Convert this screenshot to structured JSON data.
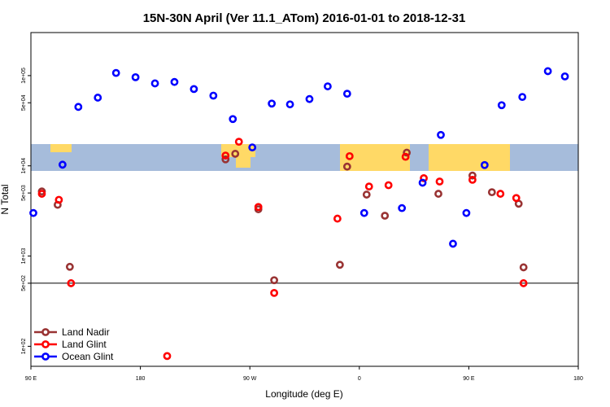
{
  "chart_data": {
    "type": "scatter",
    "title": "15N-30N April (Ver 11.1_ATom)   2016-01-01 to 2018-12-31",
    "xlabel": "Longitude (deg E)",
    "ylabel": "N Total",
    "x_ticks": [
      {
        "value": 90,
        "label": "90 E"
      },
      {
        "value": 180,
        "label": "180"
      },
      {
        "value": 270,
        "label": "90 W"
      },
      {
        "value": 360,
        "label": "0"
      },
      {
        "value": 450,
        "label": "90 E"
      },
      {
        "value": 540,
        "label": "180"
      }
    ],
    "x_range": [
      90,
      540
    ],
    "y_scale": "log",
    "y_range": [
      60,
      300000
    ],
    "y_ticks": [
      {
        "value": 100,
        "label": "1e+02"
      },
      {
        "value": 500,
        "label": "5e+02"
      },
      {
        "value": 1000,
        "label": "1e+03"
      },
      {
        "value": 5000,
        "label": "5e+03"
      },
      {
        "value": 10000,
        "label": "1e+04"
      },
      {
        "value": 50000,
        "label": "5e+04"
      },
      {
        "value": 100000,
        "label": "1e+05"
      }
    ],
    "hline": 500,
    "legend_position": "bottom-left",
    "series": [
      {
        "name": "Land Nadir",
        "color": "#993333",
        "points": [
          [
            99,
            5200
          ],
          [
            112,
            3700
          ],
          [
            122,
            760
          ],
          [
            250,
            11800
          ],
          [
            258,
            13600
          ],
          [
            277,
            3300
          ],
          [
            290,
            540
          ],
          [
            344,
            800
          ],
          [
            350,
            9800
          ],
          [
            366,
            4800
          ],
          [
            381,
            2800
          ],
          [
            399,
            14000
          ],
          [
            425,
            4900
          ],
          [
            453,
            7800
          ],
          [
            469,
            5100
          ],
          [
            491,
            3800
          ],
          [
            495,
            750
          ]
        ]
      },
      {
        "name": "Land Glint",
        "color": "#ff0000",
        "points": [
          [
            99,
            4900
          ],
          [
            113,
            4200
          ],
          [
            123,
            500
          ],
          [
            202,
            78
          ],
          [
            250,
            13000
          ],
          [
            261,
            18500
          ],
          [
            277,
            3500
          ],
          [
            290,
            390
          ],
          [
            342,
            2600
          ],
          [
            352,
            12800
          ],
          [
            368,
            5900
          ],
          [
            384,
            6100
          ],
          [
            398,
            12600
          ],
          [
            413,
            7300
          ],
          [
            426,
            6700
          ],
          [
            453,
            7000
          ],
          [
            476,
            4900
          ],
          [
            489,
            4400
          ],
          [
            495,
            500
          ]
        ]
      },
      {
        "name": "Ocean Glint",
        "color": "#0000ff",
        "points": [
          [
            92,
            3000
          ],
          [
            116,
            10300
          ],
          [
            129,
            45000
          ],
          [
            145,
            57000
          ],
          [
            160,
            107000
          ],
          [
            176,
            96000
          ],
          [
            192,
            82000
          ],
          [
            208,
            85000
          ],
          [
            224,
            71000
          ],
          [
            240,
            60000
          ],
          [
            256,
            33000
          ],
          [
            272,
            16000
          ],
          [
            288,
            49000
          ],
          [
            303,
            48000
          ],
          [
            319,
            55000
          ],
          [
            334,
            76000
          ],
          [
            350,
            63000
          ],
          [
            364,
            3000
          ],
          [
            395,
            3400
          ],
          [
            412,
            6500
          ],
          [
            427,
            22000
          ],
          [
            437,
            1370
          ],
          [
            448,
            3000
          ],
          [
            463,
            10200
          ],
          [
            477,
            47000
          ],
          [
            494,
            58000
          ],
          [
            515,
            112000
          ],
          [
            529,
            98000
          ]
        ]
      }
    ]
  }
}
